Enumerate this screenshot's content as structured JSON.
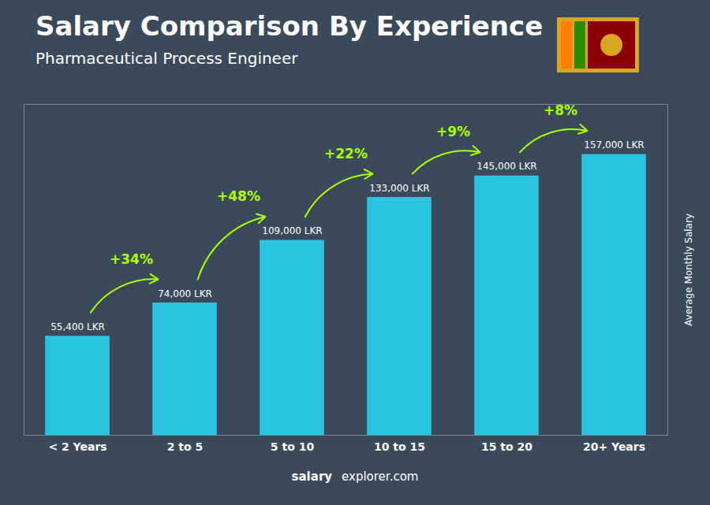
{
  "chart_data": {
    "type": "bar",
    "title": "Salary Comparison By Experience",
    "subtitle": "Pharmaceutical Process Engineer",
    "ylabel": "Average Monthly Salary",
    "categories": [
      "< 2 Years",
      "2 to 5",
      "5 to 10",
      "10 to 15",
      "15 to 20",
      "20+ Years"
    ],
    "values": [
      55400,
      74000,
      109000,
      133000,
      145000,
      157000
    ],
    "value_labels": [
      "55,400 LKR",
      "74,000 LKR",
      "109,000 LKR",
      "133,000 LKR",
      "145,000 LKR",
      "157,000 LKR"
    ],
    "data_labels": true,
    "color": "#29c4e0",
    "ylim": [
      0,
      185000
    ],
    "tick_labels": "x",
    "grid": false,
    "annotations": [
      {
        "from": "< 2 Years",
        "to": "2 to 5",
        "text": "+34%",
        "color": "#aaff00"
      },
      {
        "from": "2 to 5",
        "to": "5 to 10",
        "text": "+48%",
        "color": "#aaff00"
      },
      {
        "from": "5 to 10",
        "to": "10 to 15",
        "text": "+22%",
        "color": "#aaff00"
      },
      {
        "from": "10 to 15",
        "to": "15 to 20",
        "text": "+9%",
        "color": "#aaff00"
      },
      {
        "from": "15 to 20",
        "to": "20+ Years",
        "text": "+8%",
        "color": "#aaff00"
      }
    ],
    "footer": [
      "salary",
      "explorer.com"
    ]
  }
}
